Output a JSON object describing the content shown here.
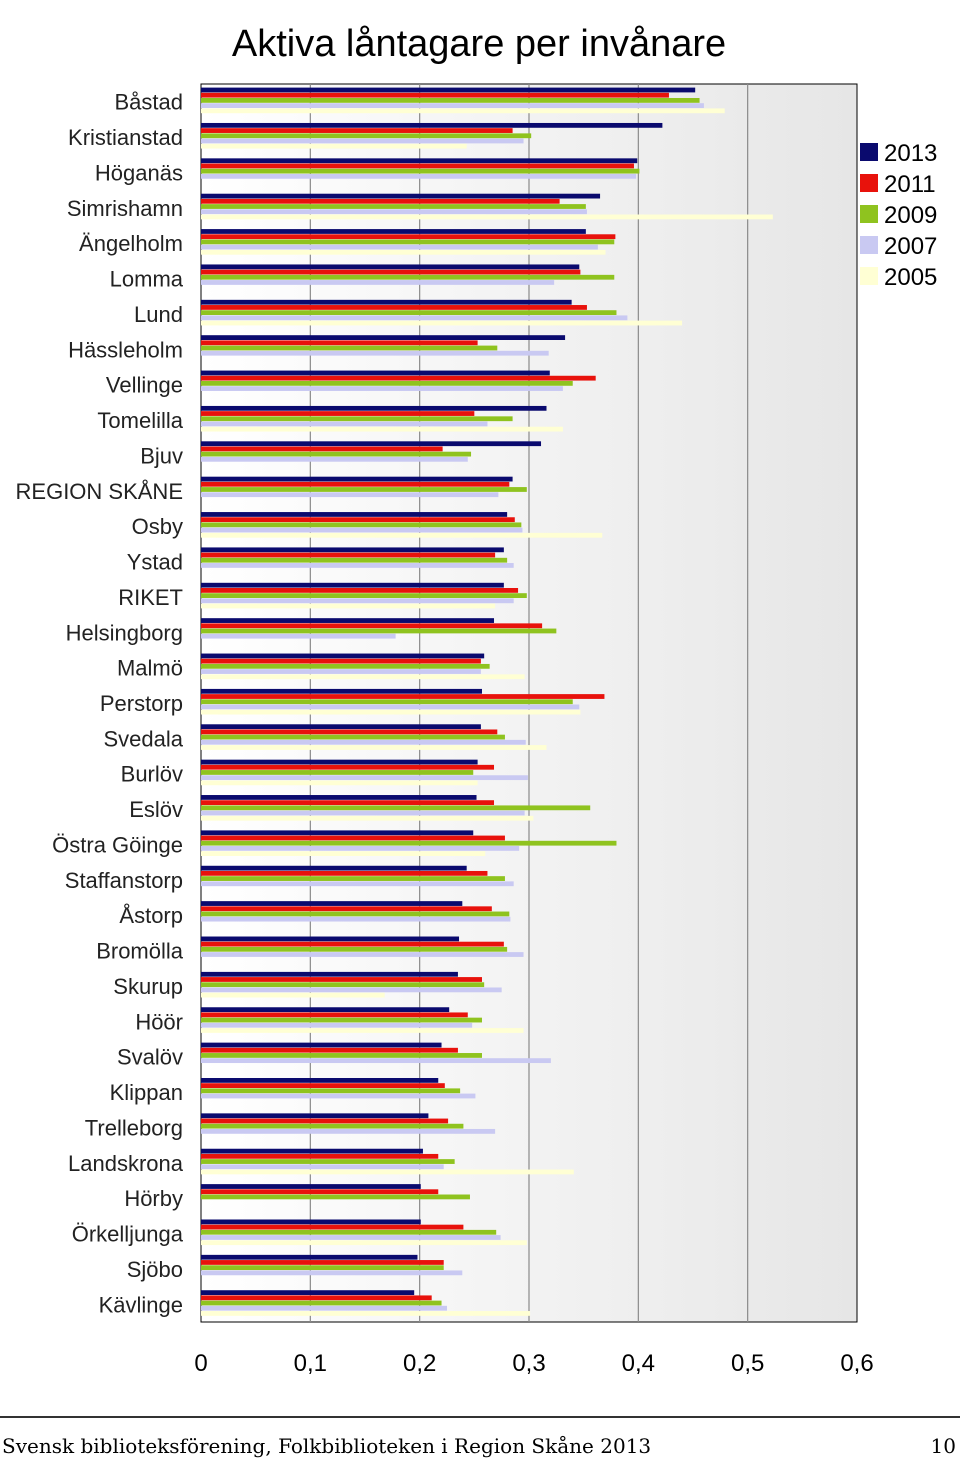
{
  "chart_data": {
    "type": "bar",
    "orientation": "horizontal",
    "title": "Aktiva låntagare per invånare",
    "xlabel": "",
    "ylabel": "",
    "xlim": [
      0,
      0.6
    ],
    "xticks": [
      "0",
      "0,1",
      "0,2",
      "0,3",
      "0,4",
      "0,5",
      "0,6"
    ],
    "grid": true,
    "legend_position": "right",
    "categories": [
      "Båstad",
      "Kristianstad",
      "Höganäs",
      "Simrishamn",
      "Ängelholm",
      "Lomma",
      "Lund",
      "Hässleholm",
      "Vellinge",
      "Tomelilla",
      "Bjuv",
      "REGION SKÅNE",
      "Osby",
      "Ystad",
      "RIKET",
      "Helsingborg",
      "Malmö",
      "Perstorp",
      "Svedala",
      "Burlöv",
      "Eslöv",
      "Östra Göinge",
      "Staffanstorp",
      "Åstorp",
      "Bromölla",
      "Skurup",
      "Höör",
      "Svalöv",
      "Klippan",
      "Trelleborg",
      "Landskrona",
      "Hörby",
      "Örkelljunga",
      "Sjöbo",
      "Kävlinge"
    ],
    "series": [
      {
        "name": "2013",
        "color": "#0a0a6e",
        "values": [
          0.452,
          0.422,
          0.399,
          0.365,
          0.352,
          0.346,
          0.339,
          0.333,
          0.319,
          0.316,
          0.311,
          0.285,
          0.28,
          0.277,
          0.277,
          0.268,
          0.259,
          0.257,
          0.256,
          0.253,
          0.252,
          0.249,
          0.243,
          0.239,
          0.236,
          0.235,
          0.227,
          0.22,
          0.217,
          0.208,
          0.203,
          0.201,
          0.201,
          0.198,
          0.195
        ]
      },
      {
        "name": "2011",
        "color": "#e8120c",
        "values": [
          0.428,
          0.285,
          0.396,
          0.328,
          0.379,
          0.347,
          0.353,
          0.253,
          0.361,
          0.25,
          0.221,
          0.282,
          0.287,
          0.269,
          0.29,
          0.312,
          0.256,
          0.369,
          0.271,
          0.268,
          0.268,
          0.278,
          0.262,
          0.266,
          0.277,
          0.257,
          0.244,
          0.235,
          0.223,
          0.226,
          0.217,
          0.217,
          0.24,
          0.222,
          0.211
        ]
      },
      {
        "name": "2009",
        "color": "#8fc31f",
        "values": [
          0.456,
          0.302,
          0.401,
          0.352,
          0.378,
          0.378,
          0.38,
          0.271,
          0.34,
          0.285,
          0.247,
          0.298,
          0.293,
          0.28,
          0.298,
          0.325,
          0.264,
          0.34,
          0.278,
          0.249,
          0.356,
          0.38,
          0.278,
          0.282,
          0.28,
          0.259,
          0.257,
          0.257,
          0.237,
          0.24,
          0.232,
          0.246,
          0.27,
          0.222,
          0.22
        ]
      },
      {
        "name": "2007",
        "color": "#c9c9f2",
        "values": [
          0.46,
          0.295,
          0.398,
          0.353,
          0.363,
          0.323,
          0.39,
          0.318,
          0.331,
          0.262,
          0.244,
          0.272,
          0.294,
          0.286,
          0.286,
          0.178,
          0.256,
          0.346,
          0.297,
          0.299,
          0.296,
          0.291,
          0.286,
          0.283,
          0.295,
          0.275,
          0.248,
          0.32,
          0.251,
          0.269,
          0.222,
          0.0,
          0.274,
          0.239,
          0.225
        ]
      },
      {
        "name": "2005",
        "color": "#ffffd4",
        "values": [
          0.479,
          0.243,
          0.0,
          0.523,
          0.37,
          0.0,
          0.44,
          0.0,
          0.0,
          0.331,
          0.0,
          0.0,
          0.367,
          0.0,
          0.269,
          0.0,
          0.296,
          0.347,
          0.316,
          0.253,
          0.304,
          0.26,
          0.0,
          0.0,
          0.0,
          0.168,
          0.295,
          0.0,
          0.0,
          0.0,
          0.341,
          0.0,
          0.298,
          0.0,
          0.301
        ]
      }
    ]
  },
  "footer": {
    "left_text": "Svensk biblioteksförening, Folkbiblioteken i Region Skåne 2013",
    "page_number": "10"
  }
}
